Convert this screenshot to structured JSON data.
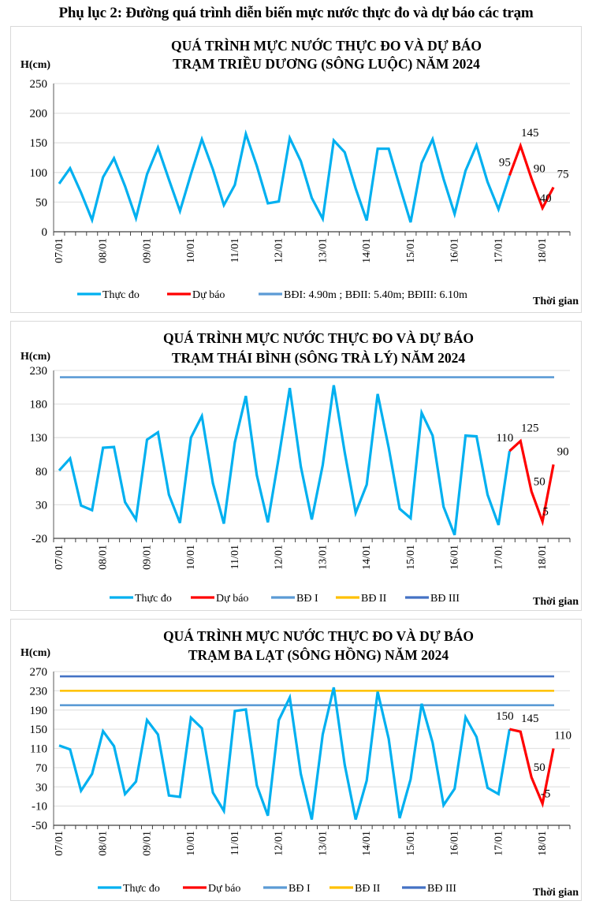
{
  "page": {
    "title": "Phụ lục 2: Đường quá trình diễn biến mực nước thực đo và dự báo các trạm"
  },
  "colors": {
    "observed": "#00b0f0",
    "forecast": "#ff0000",
    "bd1": "#5b9bd5",
    "bd2": "#ffc000",
    "bd3": "#4472c4",
    "grid": "#e3e3e3",
    "axis": "#7f7f7f"
  },
  "chart_data": [
    {
      "type": "line",
      "title": [
        "QUÁ TRÌNH MỰC NƯỚC THỰC ĐO VÀ DỰ BÁO",
        "TRẠM TRIỀU DƯƠNG (SÔNG LUỘC) NĂM 2024"
      ],
      "ylabel": "H(cm)",
      "xlabel": "Thời gian",
      "ylim": [
        0,
        250
      ],
      "yticks": [
        0,
        50,
        100,
        150,
        200,
        250
      ],
      "grid": true,
      "x_categories": [
        "07/01",
        "08/01",
        "09/01",
        "10/01",
        "11/01",
        "12/01",
        "13/01",
        "14/01",
        "15/01",
        "16/01",
        "17/01",
        "18/01"
      ],
      "points_per_day": 4,
      "series": [
        {
          "name": "Thực đo",
          "key": "observed",
          "start_index": 0,
          "values": [
            81,
            107,
            66,
            20,
            92,
            124,
            77,
            23,
            97,
            142,
            88,
            35,
            97,
            156,
            105,
            45,
            79,
            165,
            111,
            48,
            51,
            158,
            119,
            57,
            22,
            154,
            134,
            73,
            19,
            140,
            140,
            77,
            16,
            116,
            156,
            89,
            30,
            103,
            146,
            84,
            38,
            95
          ]
        },
        {
          "name": "Dự báo",
          "key": "forecast",
          "start_index": 41,
          "values": [
            95,
            145,
            90,
            40,
            75
          ],
          "labels": [
            "95",
            "145",
            "90",
            "40",
            "75"
          ]
        }
      ],
      "levels": [],
      "legend": [
        {
          "label": "Thực đo",
          "key": "observed"
        },
        {
          "label": "Dự báo",
          "key": "forecast"
        },
        {
          "label": "BĐI: 4.90m ; BĐII: 5.40m; BĐIII: 6.10m",
          "key": "bd1"
        }
      ],
      "legend_position": "bottom"
    },
    {
      "type": "line",
      "title": [
        "QUÁ TRÌNH MỰC NƯỚC THỰC ĐO VÀ DỰ BÁO",
        "TRẠM THÁI BÌNH (SÔNG TRÀ LÝ) NĂM 2024"
      ],
      "ylabel": "H(cm)",
      "xlabel": "Thời gian",
      "ylim": [
        -20,
        230
      ],
      "yticks": [
        -20,
        30,
        80,
        130,
        180,
        230
      ],
      "grid": true,
      "x_categories": [
        "07/01",
        "08/01",
        "09/01",
        "10/01",
        "11/01",
        "12/01",
        "13/01",
        "14/01",
        "15/01",
        "16/01",
        "17/01",
        "18/01"
      ],
      "points_per_day": 4,
      "series": [
        {
          "name": "Thực đo",
          "key": "observed",
          "start_index": 0,
          "values": [
            81,
            99,
            29,
            22,
            115,
            116,
            34,
            8,
            127,
            138,
            45,
            3,
            130,
            162,
            62,
            2,
            123,
            192,
            74,
            4,
            101,
            204,
            87,
            8,
            89,
            208,
            108,
            18,
            60,
            195,
            115,
            24,
            10,
            167,
            133,
            27,
            -15,
            133,
            132,
            45,
            0,
            110
          ]
        },
        {
          "name": "Dự báo",
          "key": "forecast",
          "start_index": 41,
          "values": [
            110,
            125,
            50,
            5,
            90
          ],
          "labels": [
            "110",
            "125",
            "50",
            "5",
            "90"
          ]
        }
      ],
      "levels": [
        {
          "name": "BĐ I",
          "key": "bd1",
          "value": 220
        }
      ],
      "legend": [
        {
          "label": "Thực đo",
          "key": "observed"
        },
        {
          "label": "Dự báo",
          "key": "forecast"
        },
        {
          "label": "BĐ I",
          "key": "bd1"
        },
        {
          "label": "BĐ II",
          "key": "bd2"
        },
        {
          "label": "BĐ III",
          "key": "bd3"
        }
      ],
      "legend_position": "bottom"
    },
    {
      "type": "line",
      "title": [
        "QUÁ TRÌNH MỰC NƯỚC THỰC ĐO VÀ DỰ BÁO",
        "TRẠM BA LẠT (SÔNG HỒNG) NĂM 2024"
      ],
      "ylabel": "H(cm)",
      "xlabel": "Thời gian",
      "ylim": [
        -50,
        270
      ],
      "yticks": [
        -50,
        -10,
        30,
        70,
        110,
        150,
        190,
        230,
        270
      ],
      "grid": true,
      "x_categories": [
        "07/01",
        "08/01",
        "09/01",
        "10/01",
        "11/01",
        "12/01",
        "13/01",
        "14/01",
        "15/01",
        "16/01",
        "17/01",
        "18/01"
      ],
      "points_per_day": 4,
      "series": [
        {
          "name": "Thực đo",
          "key": "observed",
          "start_index": 0,
          "values": [
            116,
            108,
            22,
            57,
            146,
            115,
            15,
            41,
            169,
            139,
            12,
            9,
            174,
            152,
            18,
            -20,
            188,
            191,
            33,
            -30,
            169,
            216,
            57,
            -38,
            139,
            237,
            76,
            -38,
            43,
            228,
            130,
            -35,
            46,
            203,
            122,
            -8,
            26,
            175,
            134,
            28,
            15,
            150
          ]
        },
        {
          "name": "Dự báo",
          "key": "forecast",
          "start_index": 41,
          "values": [
            150,
            145,
            50,
            -5,
            110
          ],
          "labels": [
            "150",
            "145",
            "50",
            "-5",
            "110"
          ]
        }
      ],
      "levels": [
        {
          "name": "BĐ I",
          "key": "bd1",
          "value": 200
        },
        {
          "name": "BĐ II",
          "key": "bd2",
          "value": 230
        },
        {
          "name": "BĐ III",
          "key": "bd3",
          "value": 260
        }
      ],
      "legend": [
        {
          "label": "Thực đo",
          "key": "observed"
        },
        {
          "label": "Dự báo",
          "key": "forecast"
        },
        {
          "label": "BĐ I",
          "key": "bd1"
        },
        {
          "label": "BĐ II",
          "key": "bd2"
        },
        {
          "label": "BĐ III",
          "key": "bd3"
        }
      ],
      "legend_position": "bottom"
    }
  ]
}
